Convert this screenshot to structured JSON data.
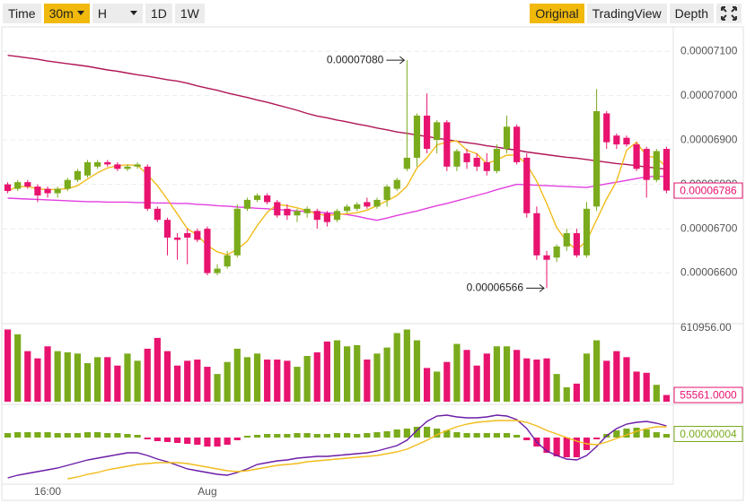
{
  "toolbar": {
    "left": [
      {
        "label": "Time"
      },
      {
        "label": "30m",
        "active": true,
        "dropdown": true
      },
      {
        "label": "H",
        "dropdown": true
      },
      {
        "label": "1D"
      },
      {
        "label": "1W"
      }
    ],
    "right": [
      {
        "label": "Original",
        "active": true
      },
      {
        "label": "TradingView"
      },
      {
        "label": "Depth"
      }
    ]
  },
  "chart_data": [
    {
      "type": "candlestick",
      "up_color": "#7aab1c",
      "down_color": "#e8136f",
      "grid": true,
      "ylim": [
        6.492e-05,
        7.155e-05
      ],
      "yticks": [
        {
          "value": 6.6e-05,
          "label": "0.00006600"
        },
        {
          "value": 6.7e-05,
          "label": "0.00006700"
        },
        {
          "value": 6.8e-05,
          "label": "0.00006800"
        },
        {
          "value": 6.9e-05,
          "label": "0.00006900"
        },
        {
          "value": 7e-05,
          "label": "0.00007000"
        },
        {
          "value": 7.1e-05,
          "label": "0.00007100"
        }
      ],
      "open": [
        6.8e-05,
        6.79e-05,
        6.805e-05,
        6.795e-05,
        6.79e-05,
        6.78e-05,
        6.79e-05,
        6.81e-05,
        6.82e-05,
        6.84e-05,
        6.85e-05,
        6.845e-05,
        6.835e-05,
        6.84e-05,
        6.84e-05,
        6.745e-05,
        6.72e-05,
        6.68e-05,
        6.69e-05,
        6.695e-05,
        6.7e-05,
        6.6e-05,
        6.615e-05,
        6.64e-05,
        6.745e-05,
        6.765e-05,
        6.775e-05,
        6.76e-05,
        6.745e-05,
        6.73e-05,
        6.735e-05,
        6.74e-05,
        6.735e-05,
        6.72e-05,
        6.74e-05,
        6.745e-05,
        6.76e-05,
        6.75e-05,
        6.765e-05,
        6.79e-05,
        6.835e-05,
        6.86e-05,
        6.955e-05,
        6.9e-05,
        6.94e-05,
        6.84e-05,
        6.87e-05,
        6.86e-05,
        6.85e-05,
        6.83e-05,
        6.88e-05,
        6.93e-05,
        6.86e-05,
        6.735e-05,
        6.64e-05,
        6.635e-05,
        6.66e-05,
        6.69e-05,
        6.64e-05,
        6.75e-05,
        6.96e-05,
        6.91e-05,
        6.905e-05,
        6.89e-05,
        6.88e-05,
        6.81e-05,
        6.88e-05
      ],
      "high": [
        6.805e-05,
        6.81e-05,
        6.81e-05,
        6.8e-05,
        6.795e-05,
        6.795e-05,
        6.815e-05,
        6.835e-05,
        6.855e-05,
        6.855e-05,
        6.855e-05,
        6.85e-05,
        6.845e-05,
        6.85e-05,
        6.845e-05,
        6.75e-05,
        6.725e-05,
        6.69e-05,
        6.7e-05,
        6.7e-05,
        6.705e-05,
        6.62e-05,
        6.65e-05,
        6.755e-05,
        6.77e-05,
        6.78e-05,
        6.78e-05,
        6.765e-05,
        6.755e-05,
        6.745e-05,
        6.75e-05,
        6.745e-05,
        6.74e-05,
        6.745e-05,
        6.755e-05,
        6.76e-05,
        6.77e-05,
        6.77e-05,
        6.8e-05,
        6.815e-05,
        7.08e-05,
        6.96e-05,
        7.005e-05,
        6.945e-05,
        6.945e-05,
        6.88e-05,
        6.88e-05,
        6.87e-05,
        6.87e-05,
        6.89e-05,
        6.955e-05,
        6.935e-05,
        6.87e-05,
        6.75e-05,
        6.65e-05,
        6.665e-05,
        6.7e-05,
        6.7e-05,
        6.76e-05,
        7.015e-05,
        6.965e-05,
        6.915e-05,
        6.91e-05,
        6.895e-05,
        6.885e-05,
        6.88e-05,
        6.885e-05
      ],
      "low": [
        6.78e-05,
        6.785e-05,
        6.79e-05,
        6.76e-05,
        6.77e-05,
        6.77e-05,
        6.785e-05,
        6.805e-05,
        6.815e-05,
        6.835e-05,
        6.84e-05,
        6.83e-05,
        6.83e-05,
        6.835e-05,
        6.74e-05,
        6.715e-05,
        6.64e-05,
        6.63e-05,
        6.62e-05,
        6.67e-05,
        6.595e-05,
        6.595e-05,
        6.61e-05,
        6.635e-05,
        6.74e-05,
        6.76e-05,
        6.755e-05,
        6.725e-05,
        6.72e-05,
        6.715e-05,
        6.725e-05,
        6.7e-05,
        6.705e-05,
        6.715e-05,
        6.735e-05,
        6.74e-05,
        6.745e-05,
        6.745e-05,
        6.75e-05,
        6.785e-05,
        6.83e-05,
        6.84e-05,
        6.87e-05,
        6.87e-05,
        6.83e-05,
        6.83e-05,
        6.835e-05,
        6.83e-05,
        6.82e-05,
        6.825e-05,
        6.87e-05,
        6.845e-05,
        6.725e-05,
        6.63e-05,
        6.566e-05,
        6.625e-05,
        6.65e-05,
        6.635e-05,
        6.635e-05,
        6.74e-05,
        6.88e-05,
        6.88e-05,
        6.885e-05,
        6.83e-05,
        6.77e-05,
        6.805e-05,
        6.78e-05
      ],
      "close": [
        6.785e-05,
        6.805e-05,
        6.795e-05,
        6.775e-05,
        6.78e-05,
        6.79e-05,
        6.81e-05,
        6.83e-05,
        6.85e-05,
        6.85e-05,
        6.845e-05,
        6.835e-05,
        6.84e-05,
        6.845e-05,
        6.745e-05,
        6.72e-05,
        6.68e-05,
        6.675e-05,
        6.68e-05,
        6.675e-05,
        6.6e-05,
        6.61e-05,
        6.64e-05,
        6.745e-05,
        6.765e-05,
        6.775e-05,
        6.76e-05,
        6.73e-05,
        6.73e-05,
        6.74e-05,
        6.745e-05,
        6.72e-05,
        6.715e-05,
        6.74e-05,
        6.75e-05,
        6.755e-05,
        6.75e-05,
        6.765e-05,
        6.795e-05,
        6.81e-05,
        6.86e-05,
        6.955e-05,
        6.88e-05,
        6.94e-05,
        6.84e-05,
        6.875e-05,
        6.85e-05,
        6.84e-05,
        6.83e-05,
        6.88e-05,
        6.93e-05,
        6.85e-05,
        6.735e-05,
        6.64e-05,
        6.63e-05,
        6.66e-05,
        6.69e-05,
        6.64e-05,
        6.745e-05,
        6.965e-05,
        6.895e-05,
        6.89e-05,
        6.89e-05,
        6.835e-05,
        6.81e-05,
        6.875e-05,
        6.786e-05
      ],
      "lines": [
        {
          "color": "#b01657",
          "values": [
            7.091e-05,
            7.088e-05,
            7.085e-05,
            7.082e-05,
            7.078e-05,
            7.075e-05,
            7.072e-05,
            7.069e-05,
            7.066e-05,
            7.062e-05,
            7.058e-05,
            7.055e-05,
            7.051e-05,
            7.047e-05,
            7.044e-05,
            7.04e-05,
            7.036e-05,
            7.033e-05,
            7.028e-05,
            7.022e-05,
            7.017e-05,
            7.012e-05,
            7.006e-05,
            7.001e-05,
            6.996e-05,
            6.99e-05,
            6.985e-05,
            6.979e-05,
            6.973e-05,
            6.967e-05,
            6.96e-05,
            6.954e-05,
            6.95e-05,
            6.945e-05,
            6.941e-05,
            6.936e-05,
            6.932e-05,
            6.927e-05,
            6.923e-05,
            6.918e-05,
            6.915e-05,
            6.911e-05,
            6.908e-05,
            6.904e-05,
            6.901e-05,
            6.897e-05,
            6.894e-05,
            6.891e-05,
            6.887e-05,
            6.884e-05,
            6.88e-05,
            6.877e-05,
            6.873e-05,
            6.87e-05,
            6.867e-05,
            6.864e-05,
            6.861e-05,
            6.859e-05,
            6.856e-05,
            6.853e-05,
            6.85e-05,
            6.847e-05,
            6.845e-05,
            6.842e-05,
            6.839e-05,
            6.837e-05,
            6.834e-05
          ]
        },
        {
          "color": "#e23ee0",
          "values": [
            6.769e-05,
            6.768e-05,
            6.767e-05,
            6.766e-05,
            6.765e-05,
            6.764e-05,
            6.763e-05,
            6.762e-05,
            6.761e-05,
            6.761e-05,
            6.76e-05,
            6.76e-05,
            6.76e-05,
            6.759e-05,
            6.759e-05,
            6.758e-05,
            6.758e-05,
            6.757e-05,
            6.757e-05,
            6.755e-05,
            6.754e-05,
            6.752e-05,
            6.751e-05,
            6.749e-05,
            6.748e-05,
            6.746e-05,
            6.745e-05,
            6.743e-05,
            6.742e-05,
            6.74e-05,
            6.739e-05,
            6.737e-05,
            6.736e-05,
            6.734e-05,
            6.732e-05,
            6.728e-05,
            6.723e-05,
            6.719e-05,
            6.724e-05,
            6.73e-05,
            6.735e-05,
            6.74e-05,
            6.746e-05,
            6.752e-05,
            6.757e-05,
            6.763e-05,
            6.769e-05,
            6.775e-05,
            6.781e-05,
            6.788e-05,
            6.794e-05,
            6.8e-05,
            6.799e-05,
            6.798e-05,
            6.797e-05,
            6.796e-05,
            6.795e-05,
            6.794e-05,
            6.793e-05,
            6.797e-05,
            6.801e-05,
            6.805e-05,
            6.809e-05,
            6.813e-05,
            6.817e-05,
            6.818e-05,
            6.818e-05
          ]
        },
        {
          "color": "#f2bc1b",
          "values": [
            6.785e-05,
            6.795e-05,
            6.795e-05,
            6.79e-05,
            6.788e-05,
            6.789e-05,
            6.79e-05,
            6.797e-05,
            6.812e-05,
            6.826e-05,
            6.837e-05,
            6.842e-05,
            6.844e-05,
            6.843e-05,
            6.822e-05,
            6.797e-05,
            6.766e-05,
            6.733e-05,
            6.7e-05,
            6.686e-05,
            6.662e-05,
            6.648e-05,
            6.641e-05,
            6.654e-05,
            6.672e-05,
            6.707e-05,
            6.737e-05,
            6.755e-05,
            6.752e-05,
            6.747e-05,
            6.741e-05,
            6.733e-05,
            6.73e-05,
            6.732e-05,
            6.734e-05,
            6.736e-05,
            6.742e-05,
            6.752e-05,
            6.763e-05,
            6.775e-05,
            6.796e-05,
            6.837e-05,
            6.86e-05,
            6.889e-05,
            6.895e-05,
            6.898e-05,
            6.877e-05,
            6.869e-05,
            6.847e-05,
            6.855e-05,
            6.866e-05,
            6.866e-05,
            6.845e-05,
            6.807e-05,
            6.757e-05,
            6.703e-05,
            6.671e-05,
            6.652e-05,
            6.673e-05,
            6.72e-05,
            6.767e-05,
            6.807e-05,
            6.877e-05,
            6.895e-05,
            6.864e-05,
            6.86e-05,
            6.839e-05
          ]
        }
      ],
      "current": {
        "value": 6.786e-05,
        "label": "0.00006786"
      },
      "annotations": [
        {
          "value": 7.08e-05,
          "label": "0.00007080"
        },
        {
          "value": 6.566e-05,
          "label": "0.00006566"
        }
      ]
    },
    {
      "type": "bar",
      "up_color": "#7aab1c",
      "down_color": "#e8136f",
      "ylim": [
        0,
        610956
      ],
      "yticks": [
        {
          "value": 610956,
          "label": "610956.00"
        }
      ],
      "values": [
        600000,
        560000,
        420000,
        360000,
        460000,
        420000,
        410000,
        400000,
        320000,
        370000,
        370000,
        300000,
        400000,
        340000,
        440000,
        530000,
        420000,
        300000,
        340000,
        350000,
        290000,
        230000,
        330000,
        440000,
        370000,
        400000,
        350000,
        350000,
        340000,
        290000,
        380000,
        410000,
        500000,
        510000,
        460000,
        470000,
        350000,
        400000,
        450000,
        570000,
        600000,
        510000,
        280000,
        250000,
        330000,
        480000,
        430000,
        300000,
        400000,
        460000,
        460000,
        430000,
        360000,
        350000,
        360000,
        230000,
        120000,
        150000,
        400000,
        510000,
        340000,
        420000,
        370000,
        250000,
        240000,
        140000,
        55561
      ],
      "current": {
        "value": 55561,
        "label": "55561.0000"
      }
    },
    {
      "type": "macd",
      "up_color": "#7aab1c",
      "down_color": "#e8136f",
      "ylim": [
        -5.2e-07,
        3.3e-07
      ],
      "categories": [
        null,
        null,
        null,
        null,
        "16:00",
        null,
        null,
        null,
        null,
        null,
        null,
        null,
        null,
        null,
        null,
        null,
        null,
        null,
        null,
        null,
        "Aug",
        null,
        null,
        null,
        null,
        null,
        null,
        null,
        null,
        null,
        null,
        null,
        null,
        null,
        null,
        null,
        null,
        null,
        null,
        null,
        null,
        null,
        null,
        null,
        null,
        null,
        null,
        null,
        null,
        null,
        null,
        null,
        null,
        null,
        null,
        null,
        null,
        null,
        null,
        null,
        null,
        null,
        null,
        null,
        null,
        null,
        null
      ],
      "histogram": [
        5e-08,
        6e-08,
        6e-08,
        6e-08,
        6e-08,
        5e-08,
        5e-08,
        5e-08,
        6e-08,
        6e-08,
        5e-08,
        5e-08,
        4e-08,
        3e-08,
        -2e-08,
        -4e-08,
        -5e-08,
        -6e-08,
        -7e-08,
        -8e-08,
        -1e-07,
        -1e-07,
        -8e-08,
        -3e-08,
        2e-08,
        3e-08,
        4e-08,
        4e-08,
        4e-08,
        5e-08,
        5e-08,
        4e-08,
        4e-08,
        5e-08,
        5e-08,
        4e-08,
        5e-08,
        6e-08,
        7e-08,
        9e-08,
        1e-07,
        1.2e-07,
        1.2e-07,
        1e-07,
        8e-08,
        6e-08,
        5e-08,
        5e-08,
        5e-08,
        5e-08,
        5e-08,
        3e-08,
        -3e-08,
        -1e-07,
        -1.7e-07,
        -2.1e-07,
        -2.2e-07,
        -2.2e-07,
        -1.4e-07,
        -2e-08,
        4e-08,
        8e-08,
        1e-07,
        1.1e-07,
        9e-08,
        6e-08,
        4e-08
      ],
      "series": [
        {
          "color": "#6a1ca6",
          "values": [
            -4.5e-07,
            -4.2e-07,
            -4e-07,
            -3.8e-07,
            -3.6e-07,
            -3.4e-07,
            -3.1e-07,
            -2.8e-07,
            -2.5e-07,
            -2.3e-07,
            -2.1e-07,
            -1.9e-07,
            -1.7e-07,
            -1.7e-07,
            -2e-07,
            -2.4e-07,
            -2.7e-07,
            -3.1e-07,
            -3.5e-07,
            -3.7e-07,
            -3.9e-07,
            -4.1e-07,
            -4.2e-07,
            -3.9e-07,
            -3.5e-07,
            -3e-07,
            -2.8e-07,
            -2.6e-07,
            -2.5e-07,
            -2.3e-07,
            -2.2e-07,
            -2.1e-07,
            -2.1e-07,
            -2e-07,
            -1.9e-07,
            -1.8e-07,
            -1.7e-07,
            -1.5e-07,
            -1.2e-07,
            -9e-08,
            -3e-08,
            8e-08,
            1.8e-07,
            2.4e-07,
            2.5e-07,
            2.3e-07,
            2.2e-07,
            2.2e-07,
            2.3e-07,
            2.5e-07,
            2.4e-07,
            2e-07,
            1e-07,
            -5e-08,
            -1.5e-07,
            -2e-07,
            -2.4e-07,
            -2.5e-07,
            -2e-07,
            -1e-07,
            2e-08,
            1e-07,
            1.5e-07,
            1.7e-07,
            1.8e-07,
            1.6e-07,
            1.3e-07
          ]
        },
        {
          "color": "#f2bc1b",
          "values": [
            null,
            null,
            null,
            null,
            null,
            null,
            -4.6e-07,
            -4.4e-07,
            -4.1e-07,
            -3.9e-07,
            -3.6e-07,
            -3.4e-07,
            -3.2e-07,
            -3e-07,
            -2.9e-07,
            -2.8e-07,
            -2.8e-07,
            -2.8e-07,
            -2.9e-07,
            -3.1e-07,
            -3.3e-07,
            -3.5e-07,
            -3.7e-07,
            -3.8e-07,
            -3.7e-07,
            -3.5e-07,
            -3.3e-07,
            -3.1e-07,
            -3e-07,
            -2.9e-07,
            -2.7e-07,
            -2.6e-07,
            -2.5e-07,
            -2.4e-07,
            -2.3e-07,
            -2.2e-07,
            -2.1e-07,
            -2e-07,
            -1.8e-07,
            -1.6e-07,
            -1.3e-07,
            -8e-08,
            -3e-08,
            3e-08,
            8e-08,
            1.2e-07,
            1.5e-07,
            1.7e-07,
            1.8e-07,
            1.9e-07,
            1.9e-07,
            1.9e-07,
            1.7e-07,
            1.3e-07,
            8e-08,
            4e-08,
            0,
            -4e-08,
            -7e-08,
            -8e-08,
            -5e-08,
            -1e-08,
            3e-08,
            7e-08,
            1e-07,
            1.2e-07,
            1.2e-07
          ]
        }
      ],
      "current": {
        "value": 4e-08,
        "label": "0.00000004"
      }
    }
  ]
}
